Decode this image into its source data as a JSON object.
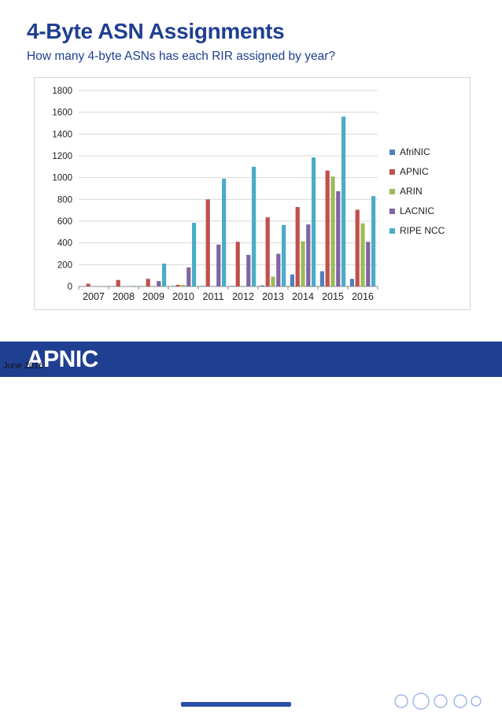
{
  "header": {
    "title": "4-Byte ASN Assignments",
    "subtitle": "How many 4-byte ASNs has each RIR assigned by year?"
  },
  "footer": {
    "logo_text": "APNIC",
    "date": "June 2016"
  },
  "colors": {
    "title": "#1f3f91",
    "footer_bg": "#1f3f91"
  },
  "chart_data": {
    "type": "bar",
    "title": "",
    "xlabel": "",
    "ylabel": "",
    "ylim": [
      0,
      1800
    ],
    "yticks": [
      0,
      200,
      400,
      600,
      800,
      1000,
      1200,
      1400,
      1600,
      1800
    ],
    "grid": true,
    "legend_position": "right",
    "categories": [
      "2007",
      "2008",
      "2009",
      "2010",
      "2011",
      "2012",
      "2013",
      "2014",
      "2015",
      "2016"
    ],
    "series": [
      {
        "name": "AfriNIC",
        "color": "#4f81bd",
        "values": [
          0,
          0,
          0,
          5,
          5,
          5,
          10,
          110,
          140,
          70
        ]
      },
      {
        "name": "APNIC",
        "color": "#c0504d",
        "values": [
          25,
          60,
          70,
          15,
          800,
          410,
          635,
          730,
          1065,
          705
        ]
      },
      {
        "name": "ARIN",
        "color": "#9bbb59",
        "values": [
          0,
          0,
          0,
          15,
          0,
          0,
          90,
          415,
          1010,
          580
        ]
      },
      {
        "name": "LACNIC",
        "color": "#8064a2",
        "values": [
          0,
          0,
          50,
          175,
          385,
          290,
          300,
          570,
          875,
          410
        ]
      },
      {
        "name": "RIPE NCC",
        "color": "#4bacc6",
        "values": [
          0,
          5,
          210,
          585,
          990,
          1100,
          565,
          1185,
          1560,
          830
        ]
      }
    ]
  }
}
